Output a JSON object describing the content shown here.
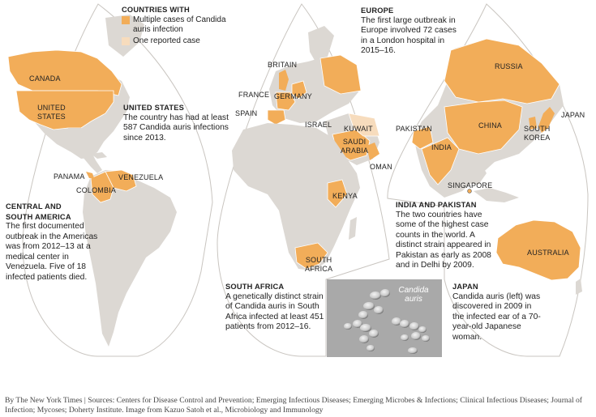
{
  "legend": {
    "title": "COUNTRIES WITH",
    "items": [
      {
        "label": "Multiple cases of Candida auris infection",
        "color": "#f2ad59"
      },
      {
        "label": "One reported case",
        "color": "#f7dcbd"
      }
    ]
  },
  "colors": {
    "land": "#dcd8d3",
    "multiple": "#f2ad59",
    "single": "#f7dcbd",
    "border": "#ffffff",
    "photo": "#a9a9a9"
  },
  "country_labels": {
    "canada": "CANADA",
    "united_states": "UNITED\nSTATES",
    "panama": "PANAMA",
    "venezuela": "VENEZUELA",
    "colombia": "COLOMBIA",
    "britain": "BRITAIN",
    "france": "FRANCE",
    "germany": "GERMANY",
    "spain": "SPAIN",
    "israel": "ISRAEL",
    "kuwait": "KUWAIT",
    "saudi_arabia": "SAUDI\nARABIA",
    "oman": "OMAN",
    "kenya": "KENYA",
    "south_africa": "SOUTH\nAFRICA",
    "russia": "RUSSIA",
    "japan": "JAPAN",
    "pakistan": "PAKISTAN",
    "china": "CHINA",
    "south_korea": "SOUTH\nKOREA",
    "india": "INDIA",
    "singapore": "SINGAPORE",
    "australia": "AUSTRALIA"
  },
  "annotations": {
    "united_states": {
      "title": "UNITED STATES",
      "body": "The country has had at least 587 Candida auris infections since 2013."
    },
    "europe": {
      "title": "EUROPE",
      "body": "The first large outbreak in Europe involved 72 cases in a London hospital in 2015–16."
    },
    "central_south_america": {
      "title": "CENTRAL AND SOUTH AMERICA",
      "body": "The first documented outbreak in the Americas was from 2012–13 at a medical center in Venezuela. Five of 18 infected patients died."
    },
    "india_pakistan": {
      "title": "INDIA AND PAKISTAN",
      "body": "The two countries have some of the highest case counts in the world. A distinct strain appeared in Pakistan as early as 2008 and in Delhi by 2009."
    },
    "south_africa": {
      "title": "SOUTH AFRICA",
      "body": "A genetically distinct strain of Candida auris in South Africa infected at least 451 patients from 2012–16."
    },
    "japan": {
      "title": "JAPAN",
      "body": "Candida auris (left) was discovered in 2009 in the infected ear of a 70-year-old Japanese woman."
    }
  },
  "photo": {
    "label": "Candida auris"
  },
  "footer": "By The New York Times | Sources: Centers for Disease Control and Prevention; Emerging Infectious Diseases; Emerging Microbes & Infections; Clinical Infectious Diseases; Journal of Infection; Mycoses; Doherty Institute. Image from Kazuo Satoh et al., Microbiology and Immunology"
}
